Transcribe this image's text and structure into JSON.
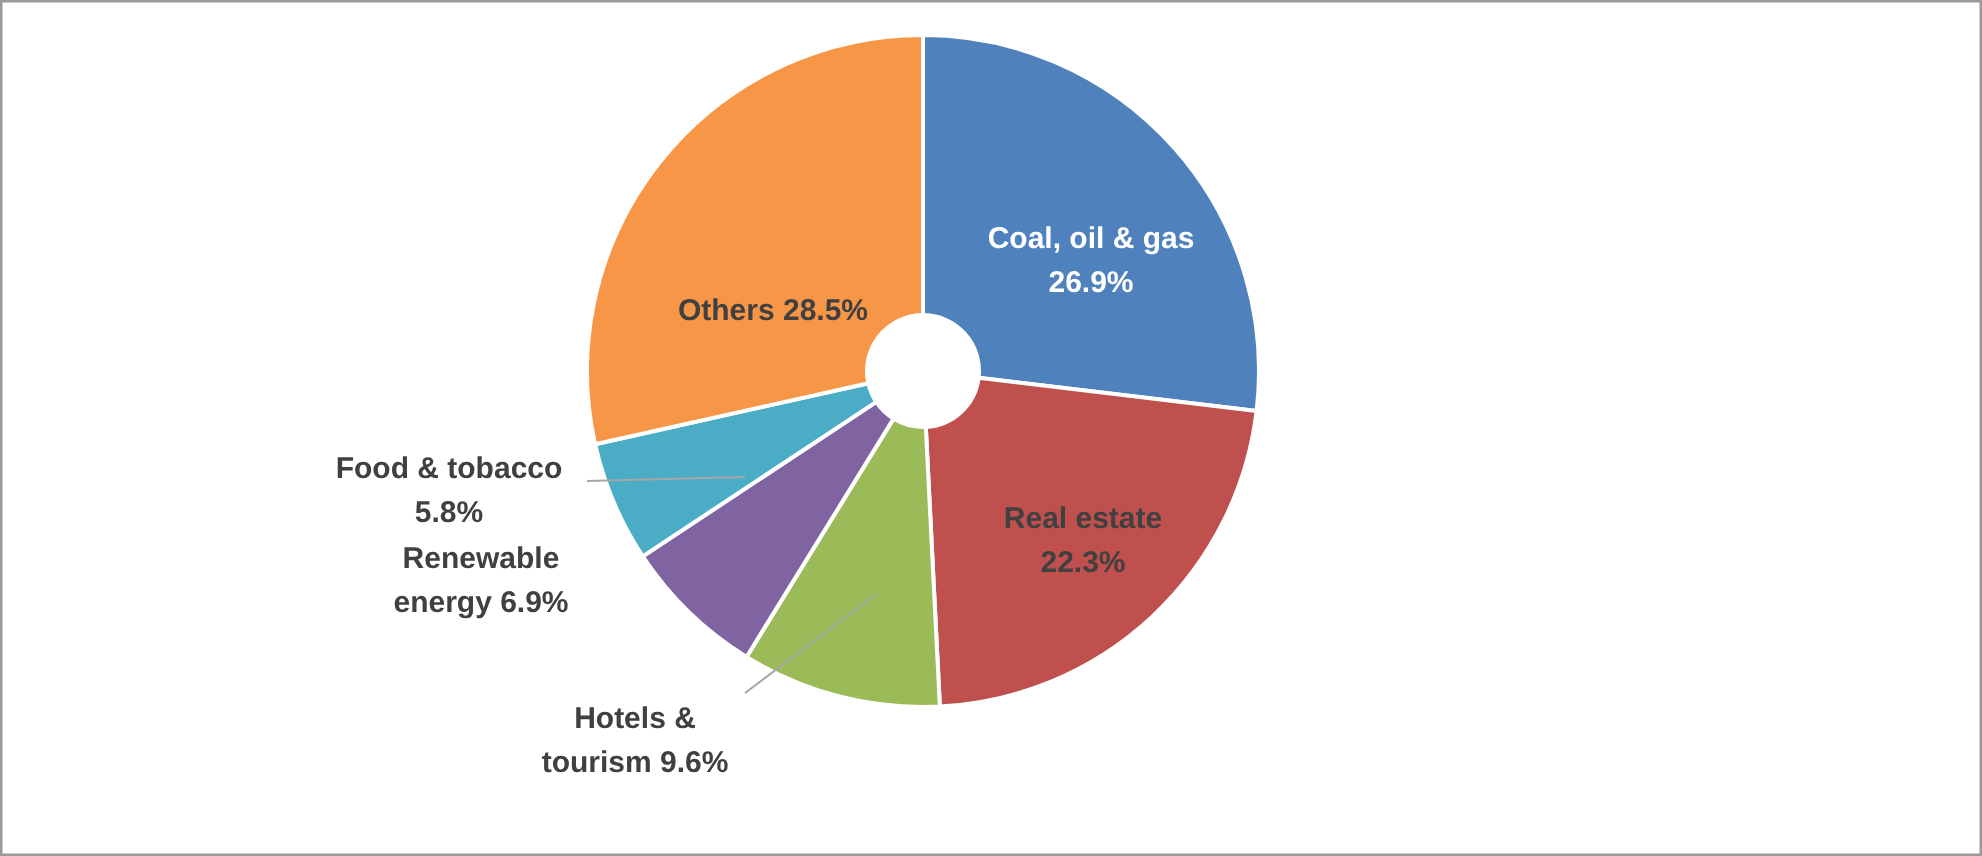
{
  "chart_data": {
    "type": "donut",
    "categories": [
      "Coal, oil & gas",
      "Real estate",
      "Hotels & tourism",
      "Renewable energy",
      "Food & tobacco",
      "Others"
    ],
    "values": [
      26.9,
      22.3,
      9.6,
      6.9,
      5.8,
      28.5
    ],
    "colors": [
      "#4f81bd",
      "#c0504d",
      "#9bbb59",
      "#8064a2",
      "#4bacc6",
      "#f79646"
    ],
    "value_labels": [
      "26.9%",
      "22.3%",
      "9.6%",
      "6.9%",
      "5.8%",
      "28.5%"
    ]
  }
}
